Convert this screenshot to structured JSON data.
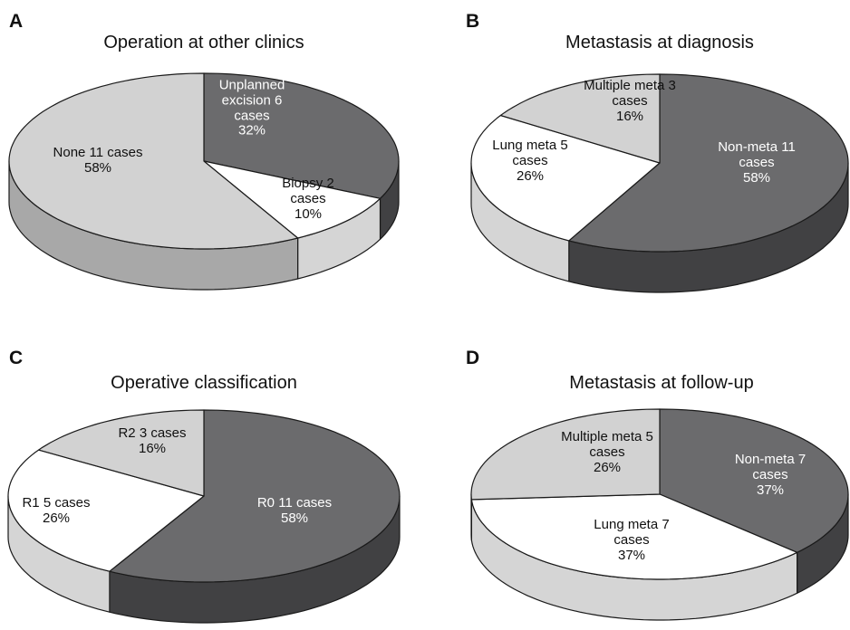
{
  "chart_data": [
    {
      "type": "pie",
      "panel": "A",
      "title": "Operation at other clinics",
      "categories": [
        "Unplanned excision",
        "Biopsy",
        "None"
      ],
      "values": [
        32,
        10,
        58
      ],
      "value_labels": [
        "32%",
        "10%",
        "58%"
      ],
      "cases": [
        6,
        2,
        11
      ],
      "case_labels": [
        "6 cases",
        "2 cases",
        "11 cases"
      ],
      "colors": [
        "#6b6b6d",
        "#ffffff",
        "#d2d2d2"
      ]
    },
    {
      "type": "pie",
      "panel": "B",
      "title": "Metastasis at diagnosis",
      "categories": [
        "Non-meta",
        "Lung meta",
        "Multiple meta"
      ],
      "values": [
        58,
        26,
        16
      ],
      "value_labels": [
        "58%",
        "26%",
        "16%"
      ],
      "cases": [
        11,
        5,
        3
      ],
      "case_labels": [
        "11 cases",
        "5 cases",
        "3 cases"
      ],
      "colors": [
        "#6b6b6d",
        "#ffffff",
        "#d2d2d2"
      ]
    },
    {
      "type": "pie",
      "panel": "C",
      "title": "Operative classification",
      "categories": [
        "R0",
        "R1",
        "R2"
      ],
      "values": [
        58,
        26,
        16
      ],
      "value_labels": [
        "58%",
        "26%",
        "16%"
      ],
      "cases": [
        11,
        5,
        3
      ],
      "case_labels": [
        "11 cases",
        "5 cases",
        "3 cases"
      ],
      "colors": [
        "#6b6b6d",
        "#ffffff",
        "#d2d2d2"
      ]
    },
    {
      "type": "pie",
      "panel": "D",
      "title": "Metastasis at follow-up",
      "categories": [
        "Non-meta",
        "Lung meta",
        "Multiple meta"
      ],
      "values": [
        37,
        37,
        26
      ],
      "value_labels": [
        "37%",
        "37%",
        "26%"
      ],
      "cases": [
        7,
        7,
        5
      ],
      "case_labels": [
        "7 cases",
        "7 cases",
        "5 cases"
      ],
      "colors": [
        "#6b6b6d",
        "#ffffff",
        "#d2d2d2"
      ]
    }
  ]
}
